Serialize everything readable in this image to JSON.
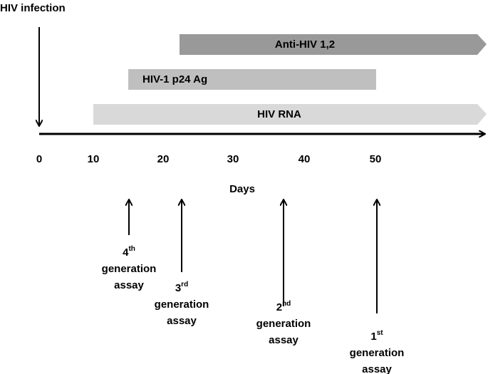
{
  "title": "HIV infection",
  "axis": {
    "label": "Days",
    "ticks": [
      "0",
      "10",
      "20",
      "30",
      "40",
      "50"
    ]
  },
  "bars": [
    {
      "label": "Anti-HIV 1,2"
    },
    {
      "label": "HIV-1 p24 Ag"
    },
    {
      "label": "HIV RNA"
    }
  ],
  "assays": [
    {
      "number": "4",
      "suffix": "th",
      "line2": "generation",
      "line3": "assay"
    },
    {
      "number": "3",
      "suffix": "rd",
      "line2": "generation",
      "line3": "assay"
    },
    {
      "number": "2",
      "suffix": "nd",
      "line2": "generation",
      "line3": "assay"
    },
    {
      "number": "1",
      "suffix": "st",
      "line2": "generation",
      "line3": "assay"
    }
  ]
}
